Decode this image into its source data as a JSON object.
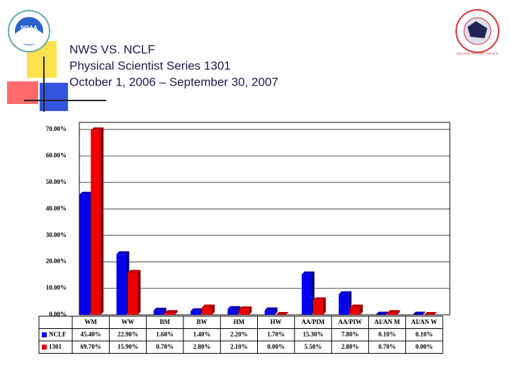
{
  "logos": {
    "left": "NOAA",
    "right": "NATIONAL WEATHER SERVICE"
  },
  "chart_data": {
    "type": "bar",
    "title": [
      "NWS VS. NCLF",
      "Physical Scientist Series 1301",
      "October 1, 2006 – September 30, 2007"
    ],
    "categories": [
      "WM",
      "WW",
      "BM",
      "BW",
      "HM",
      "HW",
      "AA/PIM",
      "AA/PIW",
      "AI/AN M",
      "AI/AN W"
    ],
    "series": [
      {
        "name": "NCLF",
        "color": "#0000ee",
        "values": [
          45.4,
          22.9,
          1.6,
          1.4,
          2.2,
          1.7,
          15.3,
          7.8,
          0.1,
          0.1
        ],
        "value_labels": [
          "45.40%",
          "22.90%",
          "1.60%",
          "1.40%",
          "2.20%",
          "1.70%",
          "15.30%",
          "7.80%",
          "0.10%",
          "0.10%"
        ]
      },
      {
        "name": "1301",
        "color": "#ee0000",
        "values": [
          69.7,
          15.9,
          0.7,
          2.8,
          2.1,
          0.0,
          5.5,
          2.8,
          0.7,
          0.0
        ],
        "value_labels": [
          "69.70%",
          "15.90%",
          "0.70%",
          "2.80%",
          "2.10%",
          "0.00%",
          "5.50%",
          "2.80%",
          "0.70%",
          "0.00%"
        ]
      }
    ],
    "ylim": [
      0,
      70
    ],
    "yticks": [
      {
        "value": 0,
        "label": "0.00%"
      },
      {
        "value": 10,
        "label": "10.00%"
      },
      {
        "value": 20,
        "label": "20.00%"
      },
      {
        "value": 30,
        "label": "30.00%"
      },
      {
        "value": 40,
        "label": "40.00%"
      },
      {
        "value": 50,
        "label": "50.00%"
      },
      {
        "value": 60,
        "label": "60.00%"
      },
      {
        "value": 70,
        "label": "70.00%"
      }
    ],
    "grid": true
  }
}
